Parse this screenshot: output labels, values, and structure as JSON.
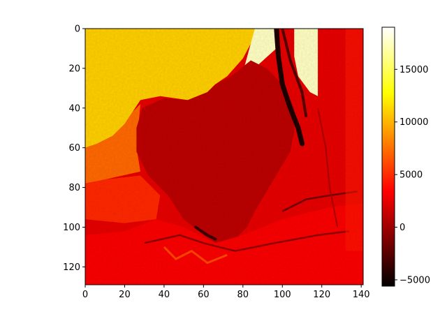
{
  "chart_data": {
    "type": "heatmap",
    "title": "",
    "xlabel": "",
    "ylabel": "",
    "colormap": "hot",
    "image_shape": {
      "rows": 129,
      "cols": 141
    },
    "xlim": [
      0,
      141
    ],
    "ylim": [
      129,
      0
    ],
    "x_ticks": [
      "0",
      "20",
      "40",
      "60",
      "80",
      "100",
      "120",
      "140"
    ],
    "y_ticks": [
      "0",
      "20",
      "40",
      "60",
      "80",
      "100",
      "120"
    ],
    "colorbar": {
      "range": [
        -5600,
        19000
      ],
      "ticks": [
        "−5000",
        "0",
        "5000",
        "10000",
        "15000"
      ]
    },
    "regions": {
      "background_value": 2500,
      "upper_left_field_value": 11000,
      "bright_strip_value": 17500,
      "central_blob_value": 1000,
      "dark_channel_value": -4500,
      "lower_band_value": 3200
    }
  }
}
